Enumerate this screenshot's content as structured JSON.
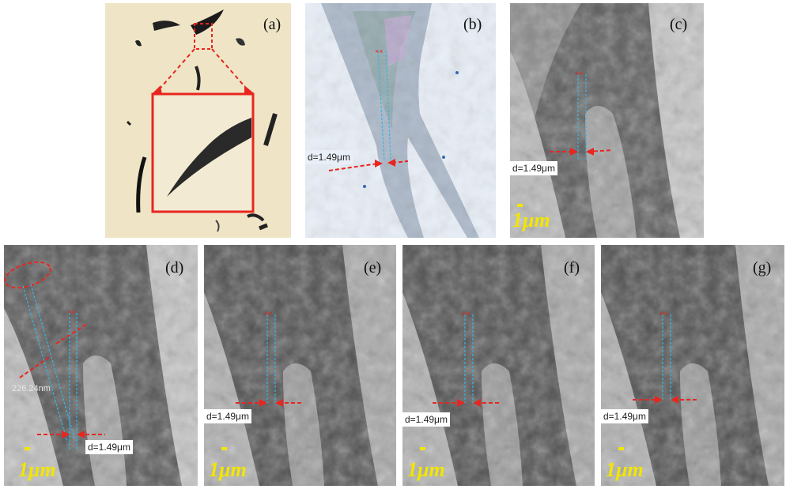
{
  "figure": {
    "panels": [
      {
        "id": "a",
        "label": "(a)"
      },
      {
        "id": "b",
        "label": "(b)",
        "measurement": "d=1.49μm"
      },
      {
        "id": "c",
        "label": "(c)",
        "measurement": "d=1.49μm",
        "scale": "1μm"
      },
      {
        "id": "d",
        "label": "(d)",
        "measurement": "d=1.49μm",
        "scale": "1μm",
        "annotation": "226.24nm"
      },
      {
        "id": "e",
        "label": "(e)",
        "measurement": "d=1.49μm",
        "scale": "1μm"
      },
      {
        "id": "f",
        "label": "(f)",
        "measurement": "d=1.49μm",
        "scale": "1μm"
      },
      {
        "id": "g",
        "label": "(g)",
        "measurement": "d=1.49μm",
        "scale": "1μm"
      }
    ]
  },
  "colors": {
    "marker_red": "#e8261f",
    "guide_cyan": "#35b6e8",
    "scale_yellow": "#f2e600"
  }
}
